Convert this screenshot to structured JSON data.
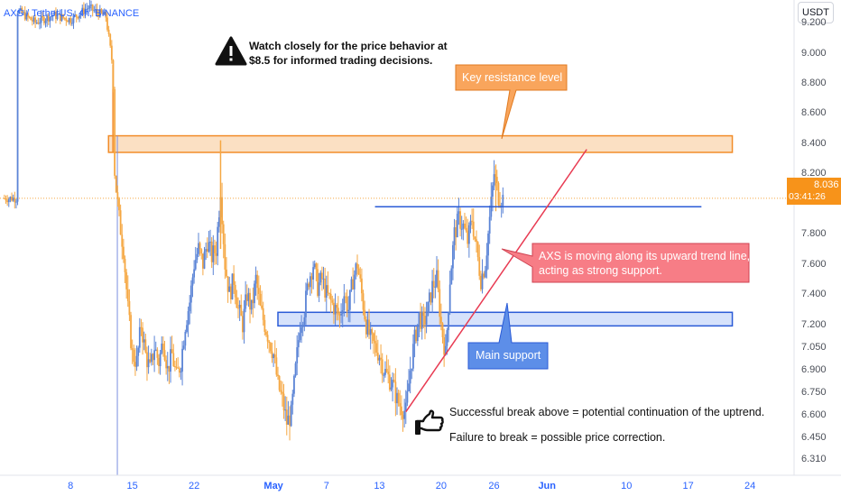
{
  "header": {
    "symbol_line": "AXS / TetherUS, 4h, BINANCE",
    "currency": "USDT"
  },
  "price_tag": {
    "price": "8.036",
    "countdown": "03:41:26"
  },
  "notes": {
    "warning_line1": "Watch closely for the price behavior at",
    "warning_line2": "$8.5 for informed trading decisions.",
    "break_above": "Successful break above = potential continuation of the uptrend.",
    "failure": "Failure to break = possible price correction."
  },
  "callouts": {
    "resistance": "Key resistance level",
    "trend_line1": "AXS is moving along its upward trend line,",
    "trend_line2": "acting as strong support.",
    "support": "Main support"
  },
  "colors": {
    "up": "#5b84d6",
    "down": "#f5a742",
    "resistance_zone": "#fbe0c3",
    "resistance_border": "#f28c28",
    "support_zone": "#d6e2fb",
    "support_border": "#2a5bd7",
    "trend_line": "#e83a52",
    "trend_callout": "#f77d86",
    "support_callout": "#5d8ee8",
    "resistance_callout": "#f9a55c"
  },
  "chart_data": {
    "type": "candlestick",
    "title": "AXS / TetherUS, 4h, BINANCE",
    "y_axis": {
      "ticks": [
        "9.200",
        "9.000",
        "8.800",
        "8.600",
        "8.400",
        "8.200",
        "7.800",
        "7.600",
        "7.400",
        "7.200",
        "7.050",
        "6.900",
        "6.750",
        "6.600",
        "6.450",
        "6.310"
      ],
      "range": [
        6.2,
        9.35
      ]
    },
    "x_axis": {
      "ticks": [
        {
          "label": "8",
          "month": false,
          "day": 8
        },
        {
          "label": "15",
          "month": false,
          "day": 15
        },
        {
          "label": "22",
          "month": false,
          "day": 22
        },
        {
          "label": "May",
          "month": true,
          "day": 31
        },
        {
          "label": "7",
          "month": false,
          "day": 37
        },
        {
          "label": "13",
          "month": false,
          "day": 43
        },
        {
          "label": "20",
          "month": false,
          "day": 50
        },
        {
          "label": "26",
          "month": false,
          "day": 56
        },
        {
          "label": "Jun",
          "month": true,
          "day": 62
        },
        {
          "label": "10",
          "month": false,
          "day": 71
        },
        {
          "label": "17",
          "month": false,
          "day": 78
        },
        {
          "label": "24",
          "month": false,
          "day": 85
        }
      ]
    },
    "close_path": [
      [
        2,
        9.28
      ],
      [
        4,
        9.2
      ],
      [
        6,
        9.25
      ],
      [
        8,
        9.22
      ],
      [
        10,
        9.3
      ],
      [
        12,
        9.24
      ],
      [
        12.8,
        8.9
      ],
      [
        13,
        8.2
      ],
      [
        13.5,
        7.9
      ],
      [
        14,
        7.7
      ],
      [
        14.5,
        7.3
      ],
      [
        15,
        7.0
      ],
      [
        15.5,
        6.95
      ],
      [
        16,
        7.2
      ],
      [
        16.5,
        7.0
      ],
      [
        17,
        6.9
      ],
      [
        17.5,
        7.05
      ],
      [
        18,
        6.95
      ],
      [
        18.5,
        7.1
      ],
      [
        19,
        6.9
      ],
      [
        19.5,
        7.0
      ],
      [
        20,
        6.85
      ],
      [
        20.5,
        6.95
      ],
      [
        21,
        7.2
      ],
      [
        21.5,
        7.35
      ],
      [
        22,
        7.6
      ],
      [
        22.5,
        7.7
      ],
      [
        23,
        7.6
      ],
      [
        23.5,
        7.75
      ],
      [
        24,
        7.65
      ],
      [
        24.5,
        7.7
      ],
      [
        25,
        8.1
      ],
      [
        25.5,
        7.6
      ],
      [
        26,
        7.4
      ],
      [
        26.5,
        7.5
      ],
      [
        27,
        7.3
      ],
      [
        27.5,
        7.2
      ],
      [
        28,
        7.4
      ],
      [
        28.5,
        7.3
      ],
      [
        29,
        7.5
      ],
      [
        29.5,
        7.3
      ],
      [
        30,
        7.2
      ],
      [
        30.5,
        7.1
      ],
      [
        31,
        7.0
      ],
      [
        31.5,
        6.8
      ],
      [
        32,
        6.7
      ],
      [
        32.5,
        6.55
      ],
      [
        33,
        6.6
      ],
      [
        33.5,
        6.9
      ],
      [
        34,
        7.2
      ],
      [
        34.5,
        7.3
      ],
      [
        35,
        7.5
      ],
      [
        35.5,
        7.6
      ],
      [
        36,
        7.45
      ],
      [
        36.5,
        7.5
      ],
      [
        37,
        7.4
      ],
      [
        37.5,
        7.35
      ],
      [
        38,
        7.3
      ],
      [
        38.5,
        7.25
      ],
      [
        39,
        7.4
      ],
      [
        39.5,
        7.3
      ],
      [
        40,
        7.5
      ],
      [
        40.5,
        7.6
      ],
      [
        41,
        7.4
      ],
      [
        41.5,
        7.2
      ],
      [
        42,
        7.1
      ],
      [
        42.5,
        7.05
      ],
      [
        43,
        7.0
      ],
      [
        43.5,
        6.9
      ],
      [
        44,
        6.85
      ],
      [
        44.5,
        6.8
      ],
      [
        45,
        6.7
      ],
      [
        45.5,
        6.65
      ],
      [
        46,
        6.62
      ],
      [
        46.5,
        6.9
      ],
      [
        47,
        7.1
      ],
      [
        47.5,
        7.25
      ],
      [
        48,
        7.2
      ],
      [
        48.5,
        7.3
      ],
      [
        49,
        7.45
      ],
      [
        49.5,
        7.5
      ],
      [
        50,
        7.2
      ],
      [
        50.5,
        7.0
      ],
      [
        51,
        7.5
      ],
      [
        51.5,
        7.8
      ],
      [
        52,
        7.9
      ],
      [
        52.5,
        7.85
      ],
      [
        53,
        7.75
      ],
      [
        53.5,
        7.9
      ],
      [
        54,
        7.7
      ],
      [
        54.5,
        7.5
      ],
      [
        55,
        7.6
      ],
      [
        55.5,
        7.9
      ],
      [
        56,
        8.2
      ],
      [
        56.5,
        8.05
      ],
      [
        57,
        8.036
      ]
    ],
    "annotations": {
      "resistance_zone": {
        "x_range": [
          12.3,
          83
        ],
        "y_range": [
          8.34,
          8.45
        ]
      },
      "support_zone": {
        "x_range": [
          31.5,
          83
        ],
        "y_range": [
          7.19,
          7.28
        ]
      },
      "level_line": {
        "x_range": [
          42.5,
          79.5
        ],
        "y": 7.98
      },
      "trend_line": {
        "from": [
          46,
          6.62
        ],
        "to": [
          66.5,
          8.36
        ]
      },
      "current_price": 8.036
    }
  }
}
